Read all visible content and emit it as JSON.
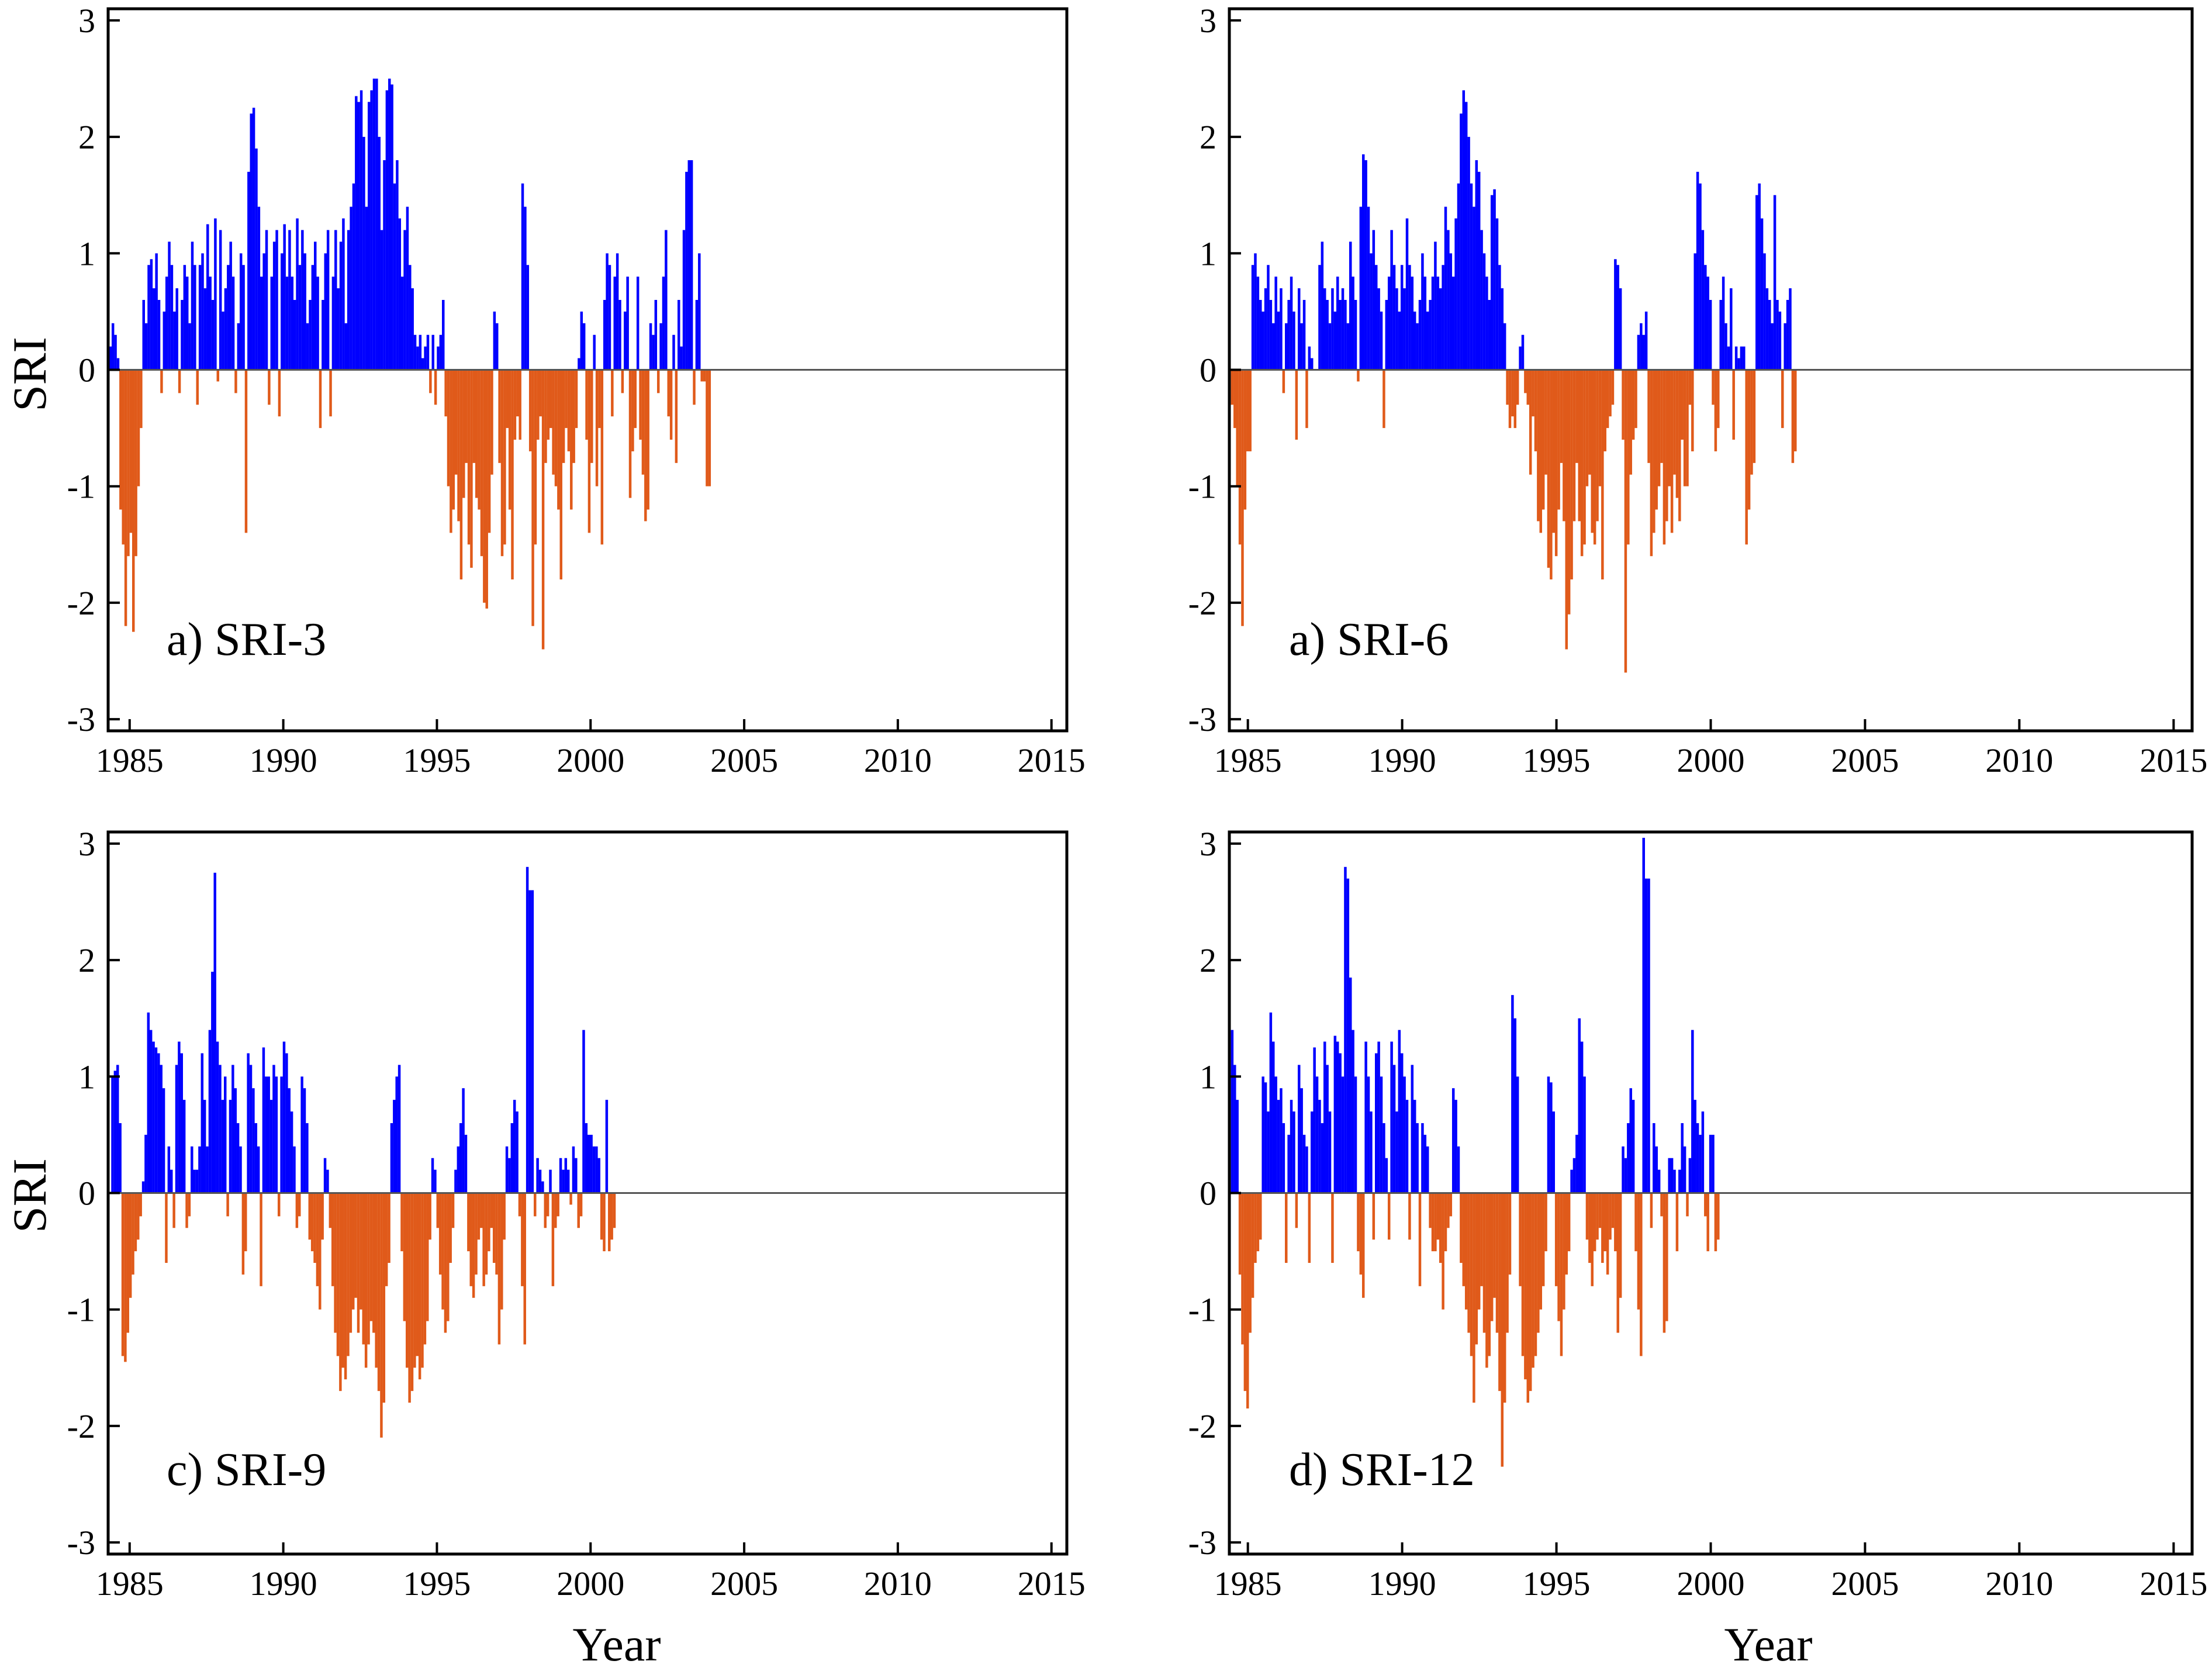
{
  "figure": {
    "ylabel": "SRI",
    "xlabel": "Year",
    "colors": {
      "positive": "#0000ff",
      "negative": "#e05a1a",
      "zero_line": "#555555",
      "frame": "#000000"
    }
  },
  "chart_data": [
    {
      "type": "bar",
      "label": "a) SRI-3",
      "ylabel": "SRI",
      "xlabel": "",
      "xlim": [
        1984.3,
        2015.5
      ],
      "ylim": [
        -3.1,
        3.1
      ],
      "xticks": [
        1985,
        1990,
        1995,
        2000,
        2005,
        2010,
        2015
      ],
      "yticks": [
        -3,
        -2,
        -1,
        0,
        1,
        2,
        3
      ],
      "x_start": 1984.33,
      "x_step": 0.0833333,
      "values": [
        0.2,
        0.4,
        0.3,
        0.1,
        -1.2,
        -1.5,
        -2.2,
        -1.6,
        -1.4,
        -2.25,
        -1.6,
        -1.0,
        -0.5,
        0.6,
        0.4,
        0.9,
        0.95,
        0.7,
        1.0,
        0.6,
        -0.2,
        0.5,
        0.8,
        1.1,
        0.9,
        0.5,
        0.7,
        -0.2,
        0.6,
        0.9,
        0.8,
        0.4,
        1.1,
        0.9,
        -0.3,
        0.9,
        1.0,
        0.7,
        1.25,
        0.8,
        0.6,
        1.3,
        -0.1,
        1.2,
        0.5,
        0.7,
        0.9,
        1.1,
        0.8,
        -0.2,
        0.4,
        1.0,
        0.9,
        -1.4,
        1.7,
        2.2,
        2.25,
        1.9,
        1.4,
        0.8,
        1.0,
        1.2,
        -0.3,
        0.8,
        1.1,
        1.2,
        -0.4,
        1.0,
        1.25,
        0.8,
        1.2,
        0.8,
        0.6,
        1.3,
        0.9,
        1.2,
        1.0,
        0.4,
        0.6,
        0.9,
        1.1,
        0.8,
        -0.5,
        0.6,
        1.0,
        1.2,
        -0.4,
        0.8,
        1.2,
        0.7,
        1.1,
        1.3,
        0.4,
        1.2,
        1.4,
        1.6,
        2.35,
        2.3,
        2.4,
        2.0,
        1.4,
        2.3,
        2.4,
        2.5,
        2.5,
        2.0,
        1.2,
        1.8,
        2.4,
        2.5,
        2.45,
        1.6,
        1.8,
        1.3,
        0.8,
        1.2,
        1.4,
        0.9,
        0.7,
        0.3,
        0.2,
        0.3,
        0.1,
        0.2,
        0.3,
        -0.2,
        0.3,
        -0.3,
        0.2,
        0.3,
        0.6,
        -0.4,
        -1.0,
        -1.4,
        -1.2,
        -0.9,
        -1.3,
        -1.8,
        -1.1,
        -0.8,
        -1.5,
        -1.7,
        -0.8,
        -1.1,
        -1.2,
        -1.6,
        -2.0,
        -2.05,
        -1.4,
        -0.9,
        0.5,
        0.4,
        -0.8,
        -1.6,
        -1.5,
        -0.5,
        -1.2,
        -1.8,
        -0.6,
        -0.4,
        -0.6,
        1.6,
        1.4,
        0.9,
        -0.7,
        -2.2,
        -1.5,
        -0.6,
        -0.4,
        -2.4,
        -0.8,
        -0.6,
        -0.5,
        -0.9,
        -1.0,
        -1.2,
        -1.8,
        -0.8,
        -0.5,
        -0.7,
        -1.2,
        -0.8,
        -0.5,
        0.1,
        0.5,
        0.4,
        -0.6,
        -1.4,
        -0.8,
        0.3,
        -1.0,
        -0.5,
        -1.5,
        0.6,
        1.0,
        0.9,
        -0.4,
        0.8,
        1.0,
        0.6,
        -0.2,
        0.5,
        0.8,
        -1.1,
        -0.7,
        -0.5,
        0.8,
        -0.6,
        -0.9,
        -1.3,
        -1.2,
        0.4,
        0.3,
        0.6,
        -0.2,
        0.4,
        0.8,
        1.2,
        -0.4,
        -0.6,
        0.3,
        -0.8,
        0.6,
        0.2,
        1.2,
        1.7,
        1.8,
        1.8,
        -0.3,
        0.6,
        1.0,
        -0.1,
        -0.1,
        -1.0,
        -1.0
      ],
      "years": [
        1985,
        1990,
        1995,
        2000,
        2005,
        2010,
        2015
      ]
    },
    {
      "type": "bar",
      "label": "a) SRI-6",
      "ylabel": "",
      "xlabel": "",
      "xlim": [
        1984.4,
        2015.6
      ],
      "ylim": [
        -3.1,
        3.1
      ],
      "xticks": [
        1985,
        1990,
        1995,
        2000,
        2005,
        2010,
        2015
      ],
      "yticks": [
        -3,
        -2,
        -1,
        0,
        1,
        2,
        3
      ],
      "x_start": 1984.45,
      "x_step": 0.0833333,
      "values": [
        -0.3,
        -0.5,
        -1.0,
        -1.5,
        -2.2,
        -1.2,
        -0.7,
        -0.7,
        0.9,
        1.0,
        0.8,
        0.6,
        0.5,
        0.7,
        0.9,
        0.6,
        0.4,
        0.8,
        0.5,
        0.7,
        -0.2,
        0.4,
        0.6,
        0.8,
        0.5,
        -0.6,
        0.7,
        0.4,
        0.6,
        -0.5,
        0.2,
        0.1,
        0.0,
        0.0,
        0.9,
        1.1,
        0.7,
        0.6,
        0.4,
        0.7,
        0.5,
        0.8,
        0.6,
        0.7,
        0.6,
        0.4,
        1.1,
        0.8,
        0.6,
        -0.1,
        1.4,
        1.85,
        1.8,
        1.4,
        1.0,
        1.2,
        0.9,
        0.7,
        0.5,
        -0.5,
        0.6,
        0.8,
        1.2,
        0.9,
        0.7,
        0.5,
        0.9,
        0.7,
        1.3,
        0.9,
        0.8,
        0.5,
        0.4,
        0.6,
        1.0,
        0.8,
        0.5,
        0.6,
        0.8,
        1.1,
        0.8,
        0.7,
        0.9,
        1.4,
        1.2,
        1.0,
        0.8,
        1.3,
        1.6,
        2.2,
        2.4,
        2.3,
        2.0,
        1.6,
        1.4,
        1.8,
        1.7,
        1.2,
        1.0,
        0.8,
        0.6,
        1.5,
        1.55,
        1.3,
        0.9,
        0.7,
        0.4,
        -0.3,
        -0.5,
        -0.4,
        -0.5,
        -0.3,
        0.2,
        0.3,
        -0.2,
        -0.3,
        -0.9,
        -0.4,
        -0.7,
        -1.3,
        -1.4,
        -1.2,
        -0.9,
        -1.7,
        -1.8,
        -1.4,
        -1.6,
        -1.2,
        -0.8,
        -1.3,
        -2.4,
        -2.1,
        -1.8,
        -1.3,
        -0.8,
        -1.3,
        -1.6,
        -1.5,
        -1.0,
        -0.9,
        -1.4,
        -1.5,
        -1.3,
        -1.0,
        -1.8,
        -0.7,
        -0.5,
        -0.4,
        -0.3,
        0.95,
        0.9,
        0.7,
        -0.6,
        -2.6,
        -1.5,
        -0.9,
        -0.6,
        -0.5,
        0.3,
        0.4,
        0.3,
        0.5,
        -0.8,
        -1.6,
        -1.4,
        -1.2,
        -1.0,
        -0.8,
        -1.5,
        -1.3,
        -1.0,
        -1.4,
        -0.9,
        -1.1,
        -1.3,
        -0.6,
        -1.0,
        -1.0,
        -0.3,
        -0.7,
        1.0,
        1.7,
        1.6,
        1.2,
        0.9,
        0.8,
        0.6,
        -0.3,
        -0.7,
        -0.5,
        0.6,
        0.8,
        0.4,
        0.2,
        0.7,
        -0.6,
        0.2,
        0.1,
        0.2,
        0.2,
        -1.5,
        -1.2,
        -0.9,
        -0.8,
        1.5,
        1.6,
        1.3,
        1.0,
        0.7,
        0.6,
        0.4,
        1.5,
        0.6,
        0.5,
        -0.5,
        0.4,
        0.6,
        0.7,
        -0.8,
        -0.7
      ],
      "years": [
        1985,
        1990,
        1995,
        2000,
        2005,
        2010,
        2015
      ]
    },
    {
      "type": "bar",
      "label": "c) SRI-9",
      "ylabel": "SRI",
      "xlabel": "Year",
      "xlim": [
        1984.3,
        2015.5
      ],
      "ylim": [
        -3.1,
        3.1
      ],
      "xticks": [
        1985,
        1990,
        1995,
        2000,
        2005,
        2010,
        2015
      ],
      "yticks": [
        -3,
        -2,
        -1,
        0,
        1,
        2,
        3
      ],
      "x_start": 1984.4,
      "x_step": 0.0833333,
      "values": [
        1.0,
        1.05,
        1.1,
        0.6,
        -1.4,
        -1.45,
        -1.2,
        -0.9,
        -0.7,
        -0.5,
        -0.4,
        -0.2,
        0.1,
        0.5,
        1.55,
        1.4,
        1.3,
        1.25,
        1.2,
        1.1,
        0.9,
        -0.6,
        0.4,
        0.2,
        -0.3,
        1.1,
        1.3,
        1.2,
        0.8,
        -0.3,
        -0.2,
        0.4,
        0.2,
        0.2,
        0.4,
        1.2,
        0.8,
        0.4,
        1.4,
        1.9,
        2.75,
        1.3,
        1.1,
        0.8,
        1.0,
        -0.2,
        0.8,
        1.1,
        0.9,
        0.6,
        0.4,
        -0.7,
        -0.5,
        1.2,
        1.1,
        0.9,
        0.6,
        0.4,
        -0.8,
        1.25,
        1.0,
        1.0,
        0.8,
        1.1,
        1.0,
        -0.2,
        1.0,
        1.3,
        1.2,
        0.9,
        0.7,
        0.4,
        -0.3,
        -0.2,
        1.0,
        0.9,
        0.6,
        -0.4,
        -0.5,
        -0.6,
        -0.8,
        -1.0,
        -0.4,
        0.3,
        0.2,
        -0.3,
        -0.8,
        -1.2,
        -1.4,
        -1.7,
        -1.5,
        -1.6,
        -1.4,
        -1.2,
        -1.0,
        -0.9,
        -1.2,
        -1.0,
        -1.3,
        -1.5,
        -1.3,
        -1.1,
        -1.2,
        -1.5,
        -1.7,
        -2.1,
        -1.8,
        -0.8,
        -0.6,
        0.6,
        0.8,
        1.0,
        1.1,
        -0.5,
        -1.1,
        -1.5,
        -1.8,
        -1.7,
        -1.5,
        -1.4,
        -1.6,
        -1.5,
        -1.3,
        -1.1,
        -0.4,
        0.3,
        0.2,
        -0.3,
        -0.7,
        -1.0,
        -1.2,
        -1.1,
        -0.6,
        -0.3,
        0.2,
        0.4,
        0.6,
        0.9,
        0.5,
        -0.5,
        -0.8,
        -0.9,
        -0.7,
        -0.4,
        -0.3,
        -0.8,
        -0.7,
        -0.5,
        -0.3,
        -0.6,
        -0.7,
        -1.3,
        -1.0,
        -0.4,
        0.4,
        0.3,
        0.6,
        0.8,
        0.7,
        -0.2,
        -0.8,
        -1.3,
        2.8,
        2.6,
        2.6,
        -0.2,
        0.3,
        0.2,
        0.1,
        -0.3,
        -0.2,
        0.2,
        -0.8,
        -0.3,
        -0.2,
        0.3,
        0.2,
        0.3,
        0.2,
        -0.1,
        0.4,
        0.3,
        -0.3,
        -0.2,
        1.4,
        0.6,
        0.5,
        0.5,
        0.4,
        0.4,
        0.3,
        -0.4,
        -0.5,
        0.8,
        -0.5,
        -0.4,
        -0.3
      ],
      "years": [
        1985,
        1990,
        1995,
        2000,
        2005,
        2010,
        2015
      ]
    },
    {
      "type": "bar",
      "label": "d) SRI-12",
      "ylabel": "",
      "xlabel": "Year",
      "xlim": [
        1984.4,
        2015.6
      ],
      "ylim": [
        -3.1,
        3.1
      ],
      "xticks": [
        1985,
        1990,
        1995,
        2000,
        2005,
        2010,
        2015
      ],
      "yticks": [
        -3,
        -2,
        -1,
        0,
        1,
        2,
        3
      ],
      "x_start": 1984.45,
      "x_step": 0.0833333,
      "values": [
        1.4,
        1.1,
        0.8,
        -0.7,
        -1.3,
        -1.7,
        -1.85,
        -1.2,
        -0.9,
        -0.6,
        -0.5,
        -0.4,
        1.0,
        0.95,
        0.7,
        1.55,
        1.3,
        1.0,
        0.8,
        0.9,
        0.6,
        -0.6,
        0.5,
        0.8,
        0.7,
        -0.3,
        1.1,
        0.9,
        0.5,
        0.4,
        -0.6,
        0.7,
        1.25,
        1.0,
        0.8,
        0.6,
        1.3,
        1.1,
        0.7,
        -0.6,
        1.35,
        1.3,
        1.2,
        1.0,
        2.8,
        2.7,
        1.85,
        1.4,
        1.0,
        -0.5,
        -0.7,
        -0.9,
        1.3,
        1.0,
        0.7,
        -0.4,
        1.2,
        1.3,
        1.0,
        0.6,
        0.3,
        -0.4,
        1.3,
        1.1,
        0.7,
        1.4,
        1.2,
        1.0,
        0.8,
        -0.4,
        1.1,
        0.8,
        0.6,
        -0.8,
        0.6,
        0.5,
        0.4,
        -0.3,
        -0.5,
        -0.5,
        -0.4,
        -0.6,
        -1.0,
        -0.5,
        -0.3,
        -0.2,
        0.9,
        0.8,
        0.4,
        -0.6,
        -0.8,
        -1.0,
        -1.2,
        -1.4,
        -1.8,
        -1.3,
        -1.0,
        -0.8,
        -1.2,
        -1.5,
        -1.4,
        -1.1,
        -0.9,
        -1.2,
        -1.7,
        -2.35,
        -1.8,
        -1.2,
        -0.7,
        1.7,
        1.5,
        1.0,
        -0.8,
        -1.4,
        -1.6,
        -1.8,
        -1.7,
        -1.5,
        -1.4,
        -1.2,
        -1.0,
        -0.8,
        -0.5,
        1.0,
        0.95,
        0.7,
        -0.8,
        -1.1,
        -1.4,
        -1.0,
        -0.7,
        -0.5,
        0.2,
        0.3,
        0.5,
        1.5,
        1.3,
        1.0,
        -0.4,
        -0.6,
        -0.8,
        -0.5,
        -0.4,
        -0.3,
        -0.6,
        -0.5,
        -0.7,
        -0.4,
        -0.3,
        -0.5,
        -1.2,
        -0.9,
        0.4,
        0.3,
        0.6,
        0.9,
        0.8,
        -0.5,
        -1.0,
        -1.4,
        3.05,
        2.7,
        2.7,
        -0.3,
        0.6,
        0.4,
        0.2,
        -0.2,
        -1.2,
        -1.1,
        0.3,
        0.3,
        0.2,
        -0.5,
        0.2,
        0.6,
        0.4,
        -0.2,
        0.3,
        1.4,
        0.8,
        0.6,
        0.5,
        0.7,
        -0.2,
        -0.5,
        0.5,
        0.5,
        -0.5,
        -0.4
      ],
      "years": [
        1985,
        1990,
        1995,
        2000,
        2005,
        2010,
        2015
      ]
    }
  ]
}
